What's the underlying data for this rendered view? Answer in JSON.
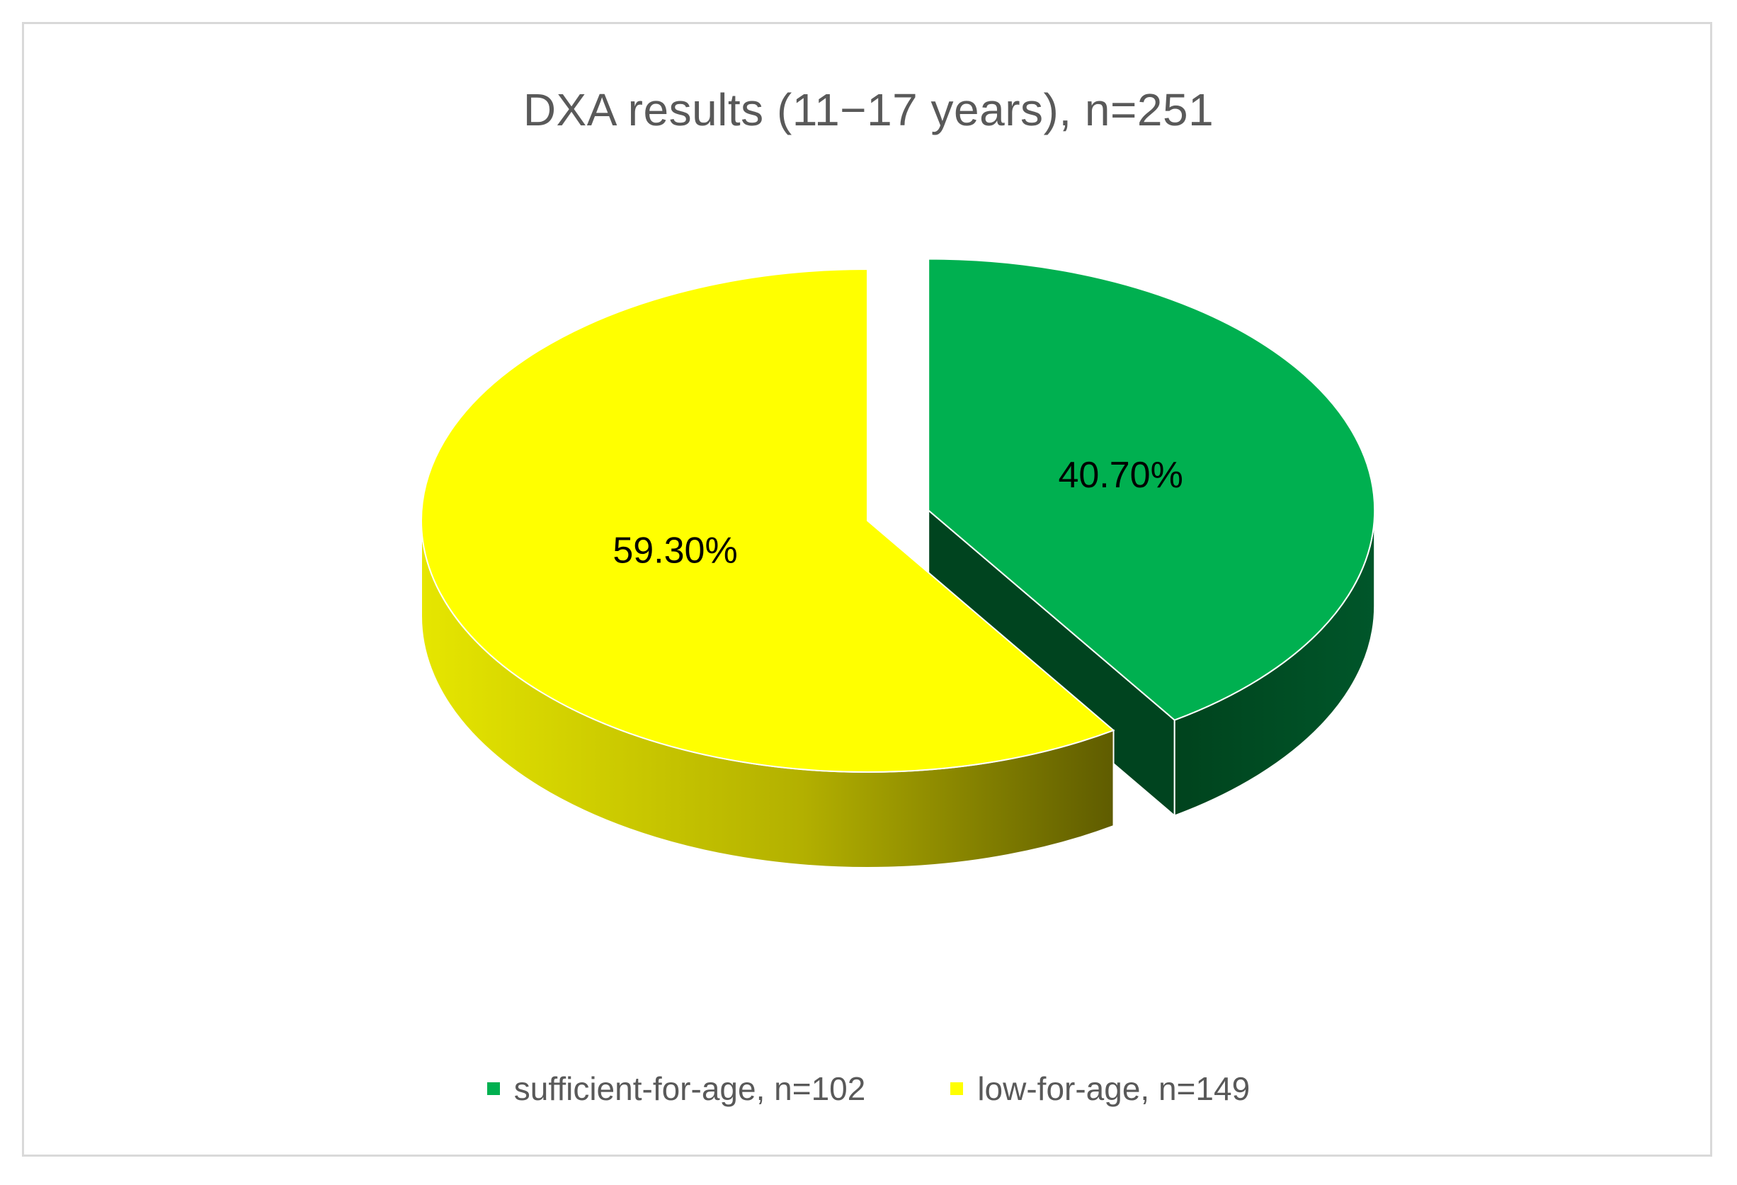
{
  "colors": {
    "sufficient": "#00B050",
    "sufficient_side": "#00441f",
    "low": "#FFFF00",
    "low_side_light": "#d9d900",
    "low_side_dark": "#666100",
    "frame": "#d9d9d9",
    "title": "#595959"
  },
  "chart_data": {
    "type": "pie",
    "style": "3d-exploded",
    "title": "DXA results (11−17 years), n=251",
    "slices": [
      {
        "name": "sufficient-for-age, n=102",
        "value": 40.7,
        "label": "40.70%",
        "color": "#00B050",
        "exploded": true
      },
      {
        "name": "low-for-age, n=149",
        "value": 59.3,
        "label": "59.30%",
        "color": "#FFFF00",
        "exploded": false
      }
    ],
    "legend_position": "bottom"
  }
}
